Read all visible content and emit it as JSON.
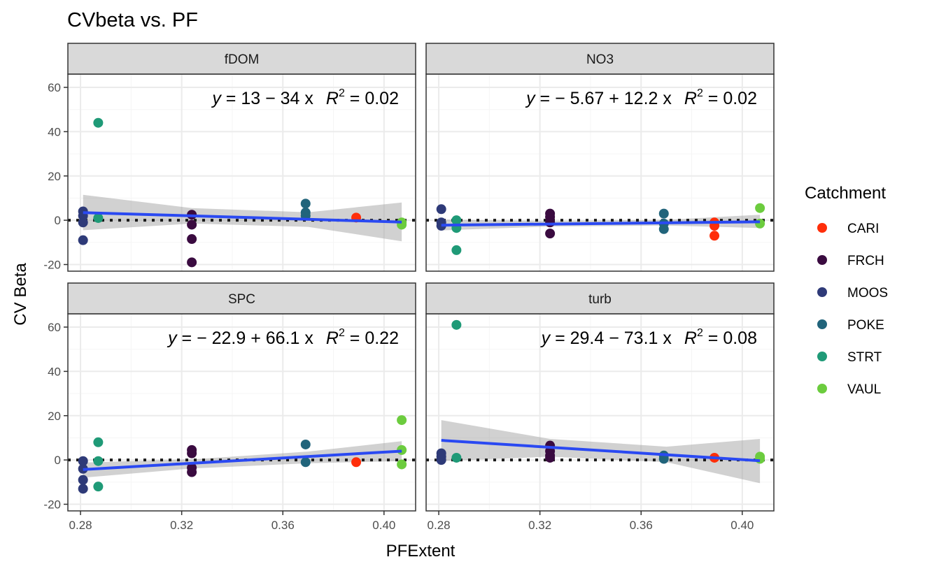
{
  "chart_data": {
    "type": "scatter",
    "title": "CVbeta vs. PF",
    "xlabel": "PFExtent",
    "ylabel": "CV Beta",
    "xlim": [
      0.275,
      0.4125
    ],
    "ylim": [
      -23,
      66
    ],
    "x_ticks": [
      0.28,
      0.32,
      0.36,
      0.4
    ],
    "x_tick_labels": [
      "0.28",
      "0.32",
      "0.36",
      "0.40"
    ],
    "y_ticks": [
      -20,
      0,
      20,
      40,
      60
    ],
    "y_tick_labels": [
      "-20",
      "0",
      "20",
      "40",
      "60"
    ],
    "grid": true,
    "reference_line_y": 0,
    "legend": {
      "title": "Catchment",
      "position": "right",
      "entries": [
        {
          "name": "CARI",
          "color": "#ff2e0a"
        },
        {
          "name": "FRCH",
          "color": "#3a0b40"
        },
        {
          "name": "MOOS",
          "color": "#2e3a78"
        },
        {
          "name": "POKE",
          "color": "#21647b"
        },
        {
          "name": "STRT",
          "color": "#1f9a77"
        },
        {
          "name": "VAUL",
          "color": "#6ccc3e"
        }
      ]
    },
    "panels": [
      {
        "label": "fDOM",
        "equation": {
          "lhs": "y",
          "rhs": " = 13 − 34 x",
          "r2_value": " = 0.02"
        },
        "fit": {
          "intercept": 13,
          "slope": -34,
          "x_range": [
            0.281,
            0.407
          ]
        },
        "ci_band": [
          [
            0.281,
            -4.5,
            11.5
          ],
          [
            0.324,
            -1.5,
            5.5
          ],
          [
            0.37,
            -3.0,
            3.6
          ],
          [
            0.407,
            -9.5,
            8.0
          ]
        ],
        "points": [
          {
            "catchment": "MOOS",
            "x": 0.281,
            "y": 4
          },
          {
            "catchment": "MOOS",
            "x": 0.281,
            "y": 2
          },
          {
            "catchment": "MOOS",
            "x": 0.281,
            "y": -1
          },
          {
            "catchment": "MOOS",
            "x": 0.281,
            "y": -9
          },
          {
            "catchment": "STRT",
            "x": 0.287,
            "y": 44
          },
          {
            "catchment": "STRT",
            "x": 0.287,
            "y": 1
          },
          {
            "catchment": "FRCH",
            "x": 0.324,
            "y": 2.5
          },
          {
            "catchment": "FRCH",
            "x": 0.324,
            "y": -2
          },
          {
            "catchment": "FRCH",
            "x": 0.324,
            "y": -8.5
          },
          {
            "catchment": "FRCH",
            "x": 0.324,
            "y": -19
          },
          {
            "catchment": "POKE",
            "x": 0.369,
            "y": 7.5
          },
          {
            "catchment": "POKE",
            "x": 0.369,
            "y": 3.5
          },
          {
            "catchment": "POKE",
            "x": 0.369,
            "y": 2
          },
          {
            "catchment": "CARI",
            "x": 0.389,
            "y": 1.2
          },
          {
            "catchment": "VAUL",
            "x": 0.407,
            "y": -1
          },
          {
            "catchment": "VAUL",
            "x": 0.407,
            "y": -2
          }
        ]
      },
      {
        "label": "NO3",
        "equation": {
          "lhs": "y",
          "rhs": " = − 5.67 + 12.2 x",
          "r2_value": " = 0.02"
        },
        "fit": {
          "intercept": -5.67,
          "slope": 12.2,
          "x_range": [
            0.281,
            0.407
          ]
        },
        "ci_band": [
          [
            0.281,
            -4.6,
            0.3
          ],
          [
            0.324,
            -2.8,
            -0.4
          ],
          [
            0.37,
            -2.4,
            0.2
          ],
          [
            0.407,
            -3.5,
            2.5
          ]
        ],
        "points": [
          {
            "catchment": "MOOS",
            "x": 0.281,
            "y": 5
          },
          {
            "catchment": "MOOS",
            "x": 0.281,
            "y": -1
          },
          {
            "catchment": "MOOS",
            "x": 0.281,
            "y": -2.5
          },
          {
            "catchment": "STRT",
            "x": 0.287,
            "y": 0
          },
          {
            "catchment": "STRT",
            "x": 0.287,
            "y": -3.5
          },
          {
            "catchment": "STRT",
            "x": 0.287,
            "y": -13.5
          },
          {
            "catchment": "FRCH",
            "x": 0.324,
            "y": 3
          },
          {
            "catchment": "FRCH",
            "x": 0.324,
            "y": 1.5
          },
          {
            "catchment": "FRCH",
            "x": 0.324,
            "y": -1
          },
          {
            "catchment": "FRCH",
            "x": 0.324,
            "y": -6
          },
          {
            "catchment": "POKE",
            "x": 0.369,
            "y": 3
          },
          {
            "catchment": "POKE",
            "x": 0.369,
            "y": -1.5
          },
          {
            "catchment": "POKE",
            "x": 0.369,
            "y": -4
          },
          {
            "catchment": "CARI",
            "x": 0.389,
            "y": -1
          },
          {
            "catchment": "CARI",
            "x": 0.389,
            "y": -2.5
          },
          {
            "catchment": "CARI",
            "x": 0.389,
            "y": -7
          },
          {
            "catchment": "VAUL",
            "x": 0.407,
            "y": 5.5
          },
          {
            "catchment": "VAUL",
            "x": 0.407,
            "y": -1.5
          }
        ]
      },
      {
        "label": "SPC",
        "equation": {
          "lhs": "y",
          "rhs": " = − 22.9 + 66.1 x",
          "r2_value": " = 0.22"
        },
        "fit": {
          "intercept": -22.9,
          "slope": 66.1,
          "x_range": [
            0.281,
            0.407
          ]
        },
        "ci_band": [
          [
            0.281,
            -8.0,
            -1.2
          ],
          [
            0.324,
            -3.8,
            0.3
          ],
          [
            0.37,
            -1.5,
            3.8
          ],
          [
            0.407,
            -0.5,
            8.5
          ]
        ],
        "points": [
          {
            "catchment": "MOOS",
            "x": 0.281,
            "y": -0.5
          },
          {
            "catchment": "MOOS",
            "x": 0.281,
            "y": -4
          },
          {
            "catchment": "MOOS",
            "x": 0.281,
            "y": -9
          },
          {
            "catchment": "MOOS",
            "x": 0.281,
            "y": -13
          },
          {
            "catchment": "STRT",
            "x": 0.287,
            "y": 8
          },
          {
            "catchment": "STRT",
            "x": 0.287,
            "y": -0.5
          },
          {
            "catchment": "STRT",
            "x": 0.287,
            "y": -12
          },
          {
            "catchment": "FRCH",
            "x": 0.324,
            "y": 4.5
          },
          {
            "catchment": "FRCH",
            "x": 0.324,
            "y": 3
          },
          {
            "catchment": "FRCH",
            "x": 0.324,
            "y": -3.5
          },
          {
            "catchment": "FRCH",
            "x": 0.324,
            "y": -5.5
          },
          {
            "catchment": "POKE",
            "x": 0.369,
            "y": 7
          },
          {
            "catchment": "POKE",
            "x": 0.369,
            "y": -1
          },
          {
            "catchment": "CARI",
            "x": 0.389,
            "y": -1
          },
          {
            "catchment": "VAUL",
            "x": 0.407,
            "y": 18
          },
          {
            "catchment": "VAUL",
            "x": 0.407,
            "y": 4.5
          },
          {
            "catchment": "VAUL",
            "x": 0.407,
            "y": -2
          }
        ]
      },
      {
        "label": "turb",
        "equation": {
          "lhs": "y",
          "rhs": " = 29.4 − 73.1 x",
          "r2_value": " = 0.08"
        },
        "fit": {
          "intercept": 29.4,
          "slope": -73.1,
          "x_range": [
            0.281,
            0.407
          ]
        },
        "ci_band": [
          [
            0.281,
            -0.5,
            18.0
          ],
          [
            0.324,
            1.5,
            9.5
          ],
          [
            0.37,
            -1.0,
            6.0
          ],
          [
            0.407,
            -10.5,
            9.5
          ]
        ],
        "points": [
          {
            "catchment": "MOOS",
            "x": 0.281,
            "y": 3
          },
          {
            "catchment": "MOOS",
            "x": 0.281,
            "y": 1.5
          },
          {
            "catchment": "MOOS",
            "x": 0.281,
            "y": 0
          },
          {
            "catchment": "STRT",
            "x": 0.287,
            "y": 61
          },
          {
            "catchment": "STRT",
            "x": 0.287,
            "y": 1
          },
          {
            "catchment": "FRCH",
            "x": 0.324,
            "y": 6.5
          },
          {
            "catchment": "FRCH",
            "x": 0.324,
            "y": 4
          },
          {
            "catchment": "FRCH",
            "x": 0.324,
            "y": 2
          },
          {
            "catchment": "FRCH",
            "x": 0.324,
            "y": 1
          },
          {
            "catchment": "POKE",
            "x": 0.369,
            "y": 2
          },
          {
            "catchment": "POKE",
            "x": 0.369,
            "y": 0.5
          },
          {
            "catchment": "CARI",
            "x": 0.389,
            "y": 1
          },
          {
            "catchment": "VAUL",
            "x": 0.407,
            "y": 1.5
          },
          {
            "catchment": "VAUL",
            "x": 0.407,
            "y": 0.5
          }
        ]
      }
    ]
  },
  "styles": {
    "panel_border": "#333333",
    "strip_fill": "#d9d9d9",
    "grid_major": "#ebebeb",
    "grid_minor": "#f5f5f5",
    "fit_line": "#2a49f2",
    "ci_fill": "#999999",
    "zero_line": "#1a1a1a"
  }
}
